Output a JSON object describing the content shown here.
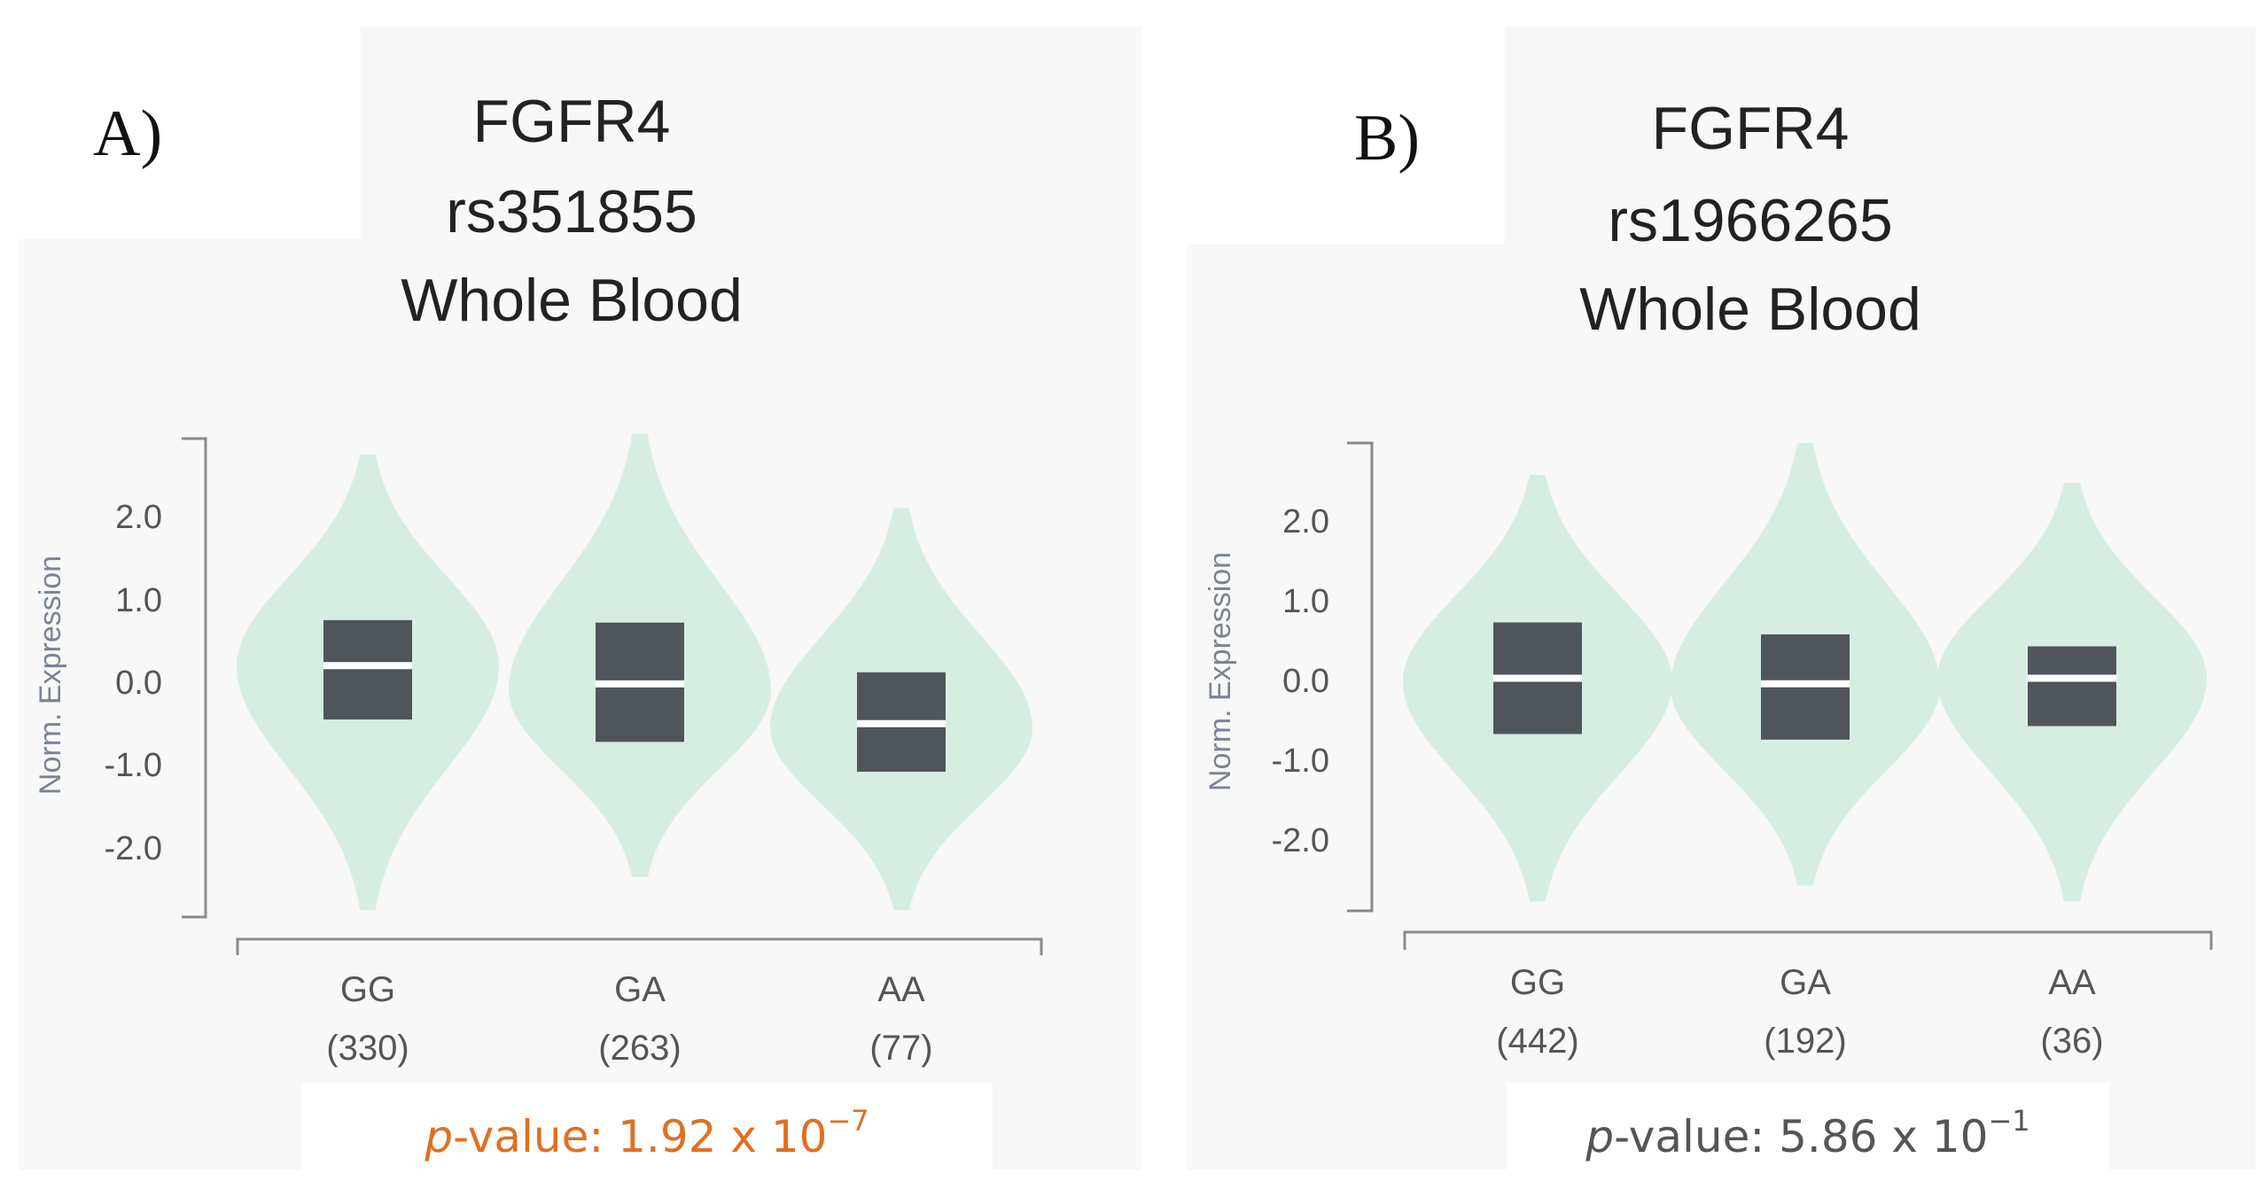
{
  "chart_data": [
    {
      "type": "violin",
      "panel_label": "A)",
      "title_lines": [
        "FGFR4",
        "rs351855",
        "Whole Blood"
      ],
      "ylabel": "Norm. Expression",
      "yticks": [
        "2.0",
        "1.0",
        "0.0",
        "-1.0",
        "-2.0"
      ],
      "ytick_values": [
        2.0,
        1.0,
        0.0,
        -1.0,
        -2.0
      ],
      "ylim": [
        -2.9,
        3.0
      ],
      "categories": [
        "GG",
        "GA",
        "AA"
      ],
      "counts": [
        "(330)",
        "(263)",
        "(77)"
      ],
      "groups": [
        {
          "name": "GG",
          "count": 330,
          "violin_min": -2.75,
          "violin_max": 2.75,
          "q1": -0.45,
          "median": 0.2,
          "q3": 0.75,
          "mode": 0.2
        },
        {
          "name": "GA",
          "count": 263,
          "violin_min": -2.35,
          "violin_max": 3.0,
          "q1": -0.72,
          "median": -0.02,
          "q3": 0.72,
          "mode": -0.1
        },
        {
          "name": "AA",
          "count": 77,
          "violin_min": -2.75,
          "violin_max": 2.1,
          "q1": -1.08,
          "median": -0.5,
          "q3": 0.12,
          "mode": -0.55
        }
      ],
      "pvalue": {
        "label_italic": "p",
        "label_rest": "-value: 1.92 x 10",
        "exponent": "−7",
        "color": "#e07020"
      }
    },
    {
      "type": "violin",
      "panel_label": "B)",
      "title_lines": [
        "FGFR4",
        "rs1966265",
        "Whole Blood"
      ],
      "ylabel": "Norm. Expression",
      "yticks": [
        "2.0",
        "1.0",
        "0.0",
        "-1.0",
        "-2.0"
      ],
      "ytick_values": [
        2.0,
        1.0,
        0.0,
        -1.0,
        -2.0
      ],
      "ylim": [
        -2.9,
        3.0
      ],
      "categories": [
        "GG",
        "GA",
        "AA"
      ],
      "counts": [
        "(442)",
        "(192)",
        "(36)"
      ],
      "groups": [
        {
          "name": "GG",
          "count": 442,
          "violin_min": -2.75,
          "violin_max": 2.6,
          "q1": -0.65,
          "median": 0.05,
          "q3": 0.75,
          "mode": 0.0
        },
        {
          "name": "GA",
          "count": 192,
          "violin_min": -2.55,
          "violin_max": 3.0,
          "q1": -0.72,
          "median": -0.02,
          "q3": 0.6,
          "mode": -0.05
        },
        {
          "name": "AA",
          "count": 36,
          "violin_min": -2.75,
          "violin_max": 2.5,
          "q1": -0.55,
          "median": 0.05,
          "q3": 0.45,
          "mode": 0.05
        }
      ],
      "pvalue": {
        "label_italic": "p",
        "label_rest": "-value: 5.86 x 10",
        "exponent": "−1",
        "color": "#555555"
      }
    }
  ],
  "colors": {
    "violin": "#d6eee2",
    "box": "#50555b",
    "axis": "#8a8a8a",
    "pvalue_significant": "#e07020",
    "pvalue_neutral": "#555555"
  }
}
